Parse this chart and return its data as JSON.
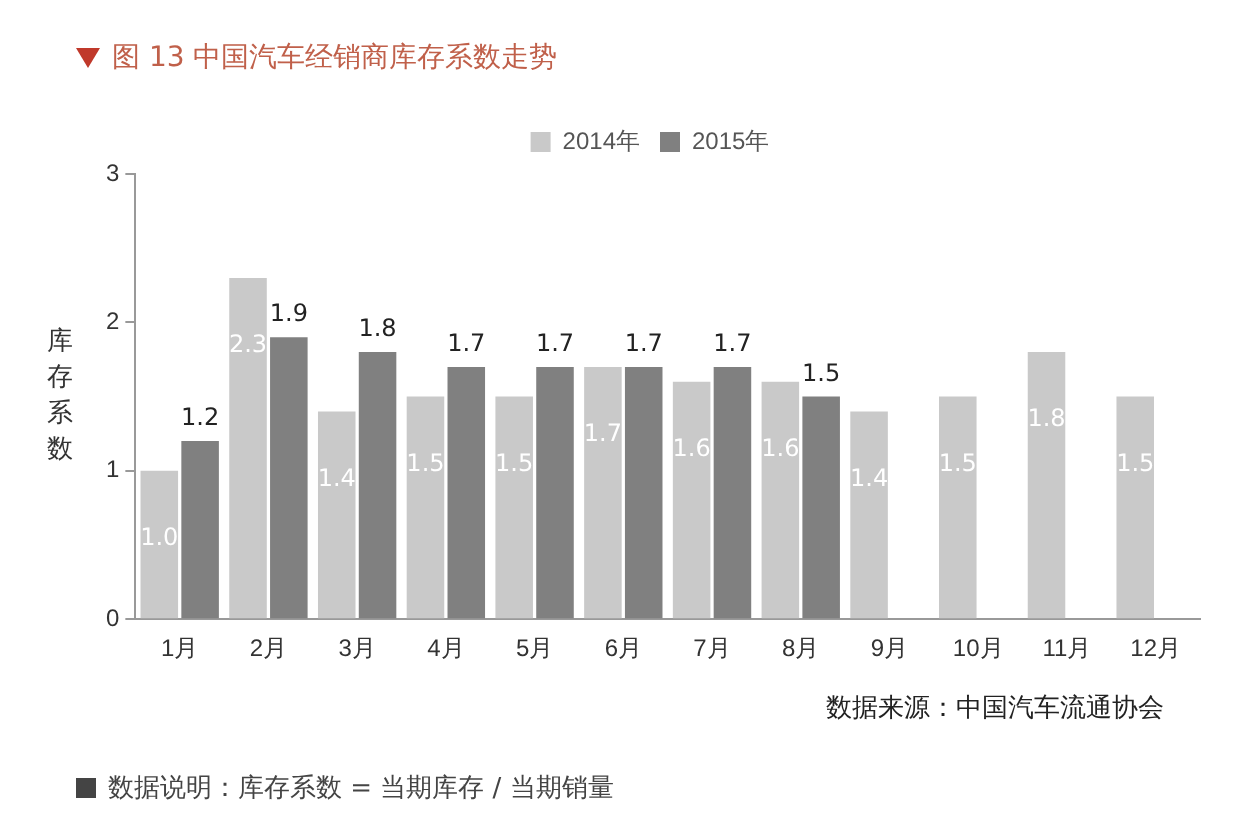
{
  "chart_data": {
    "type": "bar",
    "title": "图 13  中国汽车经销商库存系数走势",
    "ylabel": "库存系数",
    "categories": [
      "1月",
      "2月",
      "3月",
      "4月",
      "5月",
      "6月",
      "7月",
      "8月",
      "9月",
      "10月",
      "11月",
      "12月"
    ],
    "series": [
      {
        "name": "2014年",
        "color": "#c9c9c9",
        "values": [
          1.0,
          2.3,
          1.4,
          1.5,
          1.5,
          1.7,
          1.6,
          1.6,
          1.4,
          1.5,
          1.8,
          1.5
        ],
        "value_labels": [
          "1.0",
          "2.3",
          "1.4",
          "1.5",
          "1.5",
          "1.7",
          "1.6",
          "1.6",
          "1.4",
          "1.5",
          "1.8",
          "1.5"
        ]
      },
      {
        "name": "2015年",
        "color": "#808080",
        "values": [
          1.2,
          1.9,
          1.8,
          1.7,
          1.7,
          1.7,
          1.7,
          1.5,
          null,
          null,
          null,
          null
        ],
        "value_labels": [
          "1.2",
          "1.9",
          "1.8",
          "1.7",
          "1.7",
          "1.7",
          "1.7",
          "1.5",
          null,
          null,
          null,
          null
        ]
      }
    ],
    "ylim": [
      0,
      3
    ],
    "yticks": [
      0,
      1,
      2,
      3
    ],
    "grid": false,
    "legend": "top",
    "annotations": [
      "数据来源：中国汽车流通协会",
      "数据说明：库存系数 = 当期库存 / 当期销量"
    ]
  }
}
